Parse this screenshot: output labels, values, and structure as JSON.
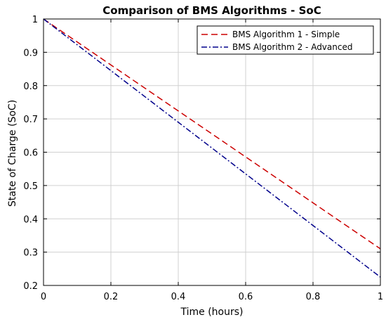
{
  "chart_data": {
    "type": "line",
    "title": "Comparison of BMS Algorithms - SoC",
    "xlabel": "Time (hours)",
    "ylabel": "State of Charge (SoC)",
    "xlim": [
      0,
      1
    ],
    "ylim": [
      0.2,
      1
    ],
    "xticks": [
      0,
      0.2,
      0.4,
      0.6,
      0.8,
      1
    ],
    "xtick_labels": [
      "0",
      "0.2",
      "0.4",
      "0.6",
      "0.8",
      "1"
    ],
    "yticks": [
      0.2,
      0.3,
      0.4,
      0.5,
      0.6,
      0.7,
      0.8,
      0.9,
      1
    ],
    "ytick_labels": [
      "0.2",
      "0.3",
      "0.4",
      "0.5",
      "0.6",
      "0.7",
      "0.8",
      "0.9",
      "1"
    ],
    "grid": true,
    "legend_position": "top-right",
    "series": [
      {
        "name": "BMS Algorithm 1 - Simple",
        "color": "#cc0000",
        "style": "dashed",
        "x": [
          0,
          0.2,
          0.4,
          0.6,
          0.8,
          1
        ],
        "y": [
          1.0,
          0.862,
          0.724,
          0.586,
          0.448,
          0.31
        ]
      },
      {
        "name": "BMS Algorithm 2 - Advanced",
        "color": "#00008b",
        "style": "dashdot",
        "x": [
          0,
          0.2,
          0.4,
          0.6,
          0.8,
          1
        ],
        "y": [
          1.0,
          0.845,
          0.69,
          0.535,
          0.38,
          0.225
        ]
      }
    ]
  }
}
